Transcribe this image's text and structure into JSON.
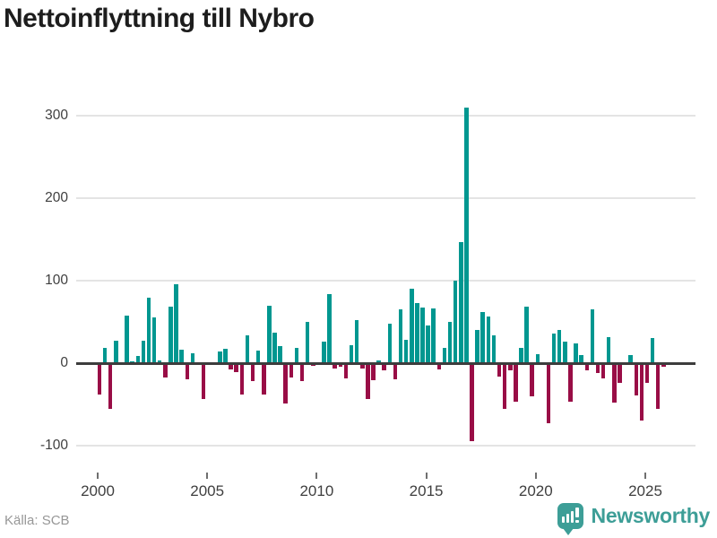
{
  "header": {
    "title": "Nettoinflyttning till Nybro"
  },
  "footer": {
    "source": "Källa: SCB",
    "brand": "Newsworthy"
  },
  "colors": {
    "positive_bar": "#009790",
    "negative_bar": "#990d46",
    "gridline": "#e4e4e4",
    "zero_line": "#3d3d3d",
    "brand_teal": "#3d9e97",
    "title_text": "#1d1d1d",
    "axis_text": "#3f3f3f",
    "source_text": "#979797"
  },
  "chart_data": {
    "type": "bar",
    "title": "Nettoinflyttning till Nybro",
    "xlabel": "",
    "ylabel": "",
    "frequency": "quarterly",
    "start": "2000Q1",
    "end": "2025Q4",
    "ylim": [
      -110,
      330
    ],
    "grid": "horizontal",
    "legend": "none",
    "x_ticks": [
      "2000",
      "2005",
      "2010",
      "2015",
      "2020",
      "2025"
    ],
    "y_ticks": [
      "300",
      "200",
      "100",
      "0",
      "-100"
    ],
    "y_tick_values": [
      300,
      200,
      100,
      0,
      -100
    ],
    "values": [
      -38,
      18,
      -55,
      27,
      0,
      58,
      2,
      9,
      27,
      79,
      55,
      3,
      -17,
      68,
      96,
      16,
      -19,
      12,
      0,
      -43,
      0,
      0,
      14,
      17,
      -8,
      -11,
      -38,
      34,
      -22,
      15,
      -38,
      70,
      37,
      21,
      -49,
      -17,
      18,
      -22,
      50,
      -3,
      0,
      26,
      84,
      -7,
      -4,
      -18,
      22,
      52,
      -6,
      -43,
      -21,
      3,
      -9,
      48,
      -20,
      65,
      28,
      90,
      73,
      67,
      46,
      66,
      -8,
      18,
      50,
      100,
      147,
      310,
      -95,
      40,
      62,
      57,
      34,
      -16,
      -55,
      -9,
      -47,
      18,
      68,
      -40,
      11,
      0,
      -73,
      36,
      40,
      26,
      -47,
      24,
      10,
      -9,
      65,
      -12,
      -18,
      32,
      -48,
      -24,
      0,
      10,
      -39,
      -70,
      -24,
      31,
      -55,
      -4
    ]
  }
}
